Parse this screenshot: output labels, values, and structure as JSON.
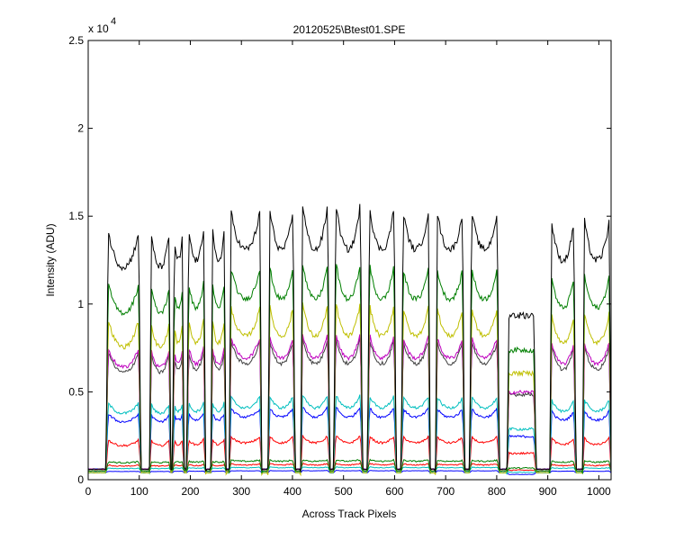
{
  "chart_data": {
    "type": "line",
    "title": "20120525\\Btest01.SPE",
    "xlabel": "Across Track Pixels",
    "ylabel": "Intensity (ADU)",
    "exponent_base": "x 10",
    "exponent_power": "4",
    "xlim": [
      0,
      1024
    ],
    "ylim": [
      0,
      25000
    ],
    "xticks": [
      0,
      100,
      200,
      300,
      400,
      500,
      600,
      700,
      800,
      900,
      1000
    ],
    "yticks": [
      0,
      5000,
      10000,
      15000,
      20000,
      25000
    ],
    "xtick_labels": [
      "0",
      "100",
      "200",
      "300",
      "400",
      "500",
      "600",
      "700",
      "800",
      "900",
      "1000"
    ],
    "ytick_labels": [
      "0",
      "0.5",
      "1",
      "1.5",
      "2",
      "2.5"
    ],
    "grid": false,
    "legend": "none",
    "windows_x": [
      [
        35,
        103
      ],
      [
        120,
        162
      ],
      [
        165,
        188
      ],
      [
        193,
        230
      ],
      [
        240,
        270
      ],
      [
        276,
        340
      ],
      [
        352,
        405
      ],
      [
        416,
        473
      ],
      [
        481,
        537
      ],
      [
        547,
        603
      ],
      [
        613,
        670
      ],
      [
        680,
        737
      ],
      [
        747,
        805
      ],
      [
        820,
        877
      ],
      [
        904,
        955
      ],
      [
        968,
        1024
      ]
    ],
    "series": [
      {
        "color": "#000000",
        "edge": 15600,
        "center": 12500,
        "jitter": 200
      },
      {
        "color": "#007f00",
        "edge": 12300,
        "center": 9800,
        "jitter": 150
      },
      {
        "color": "#bfbf00",
        "edge": 10100,
        "center": 7800,
        "jitter": 130
      },
      {
        "color": "#bf00bf",
        "edge": 8300,
        "center": 6600,
        "jitter": 110
      },
      {
        "color": "#404040",
        "edge": 8100,
        "center": 6300,
        "jitter": 110
      },
      {
        "color": "#00bfbf",
        "edge": 4800,
        "center": 3900,
        "jitter": 80
      },
      {
        "color": "#0000ff",
        "edge": 4100,
        "center": 3400,
        "jitter": 70
      },
      {
        "color": "#ff0000",
        "edge": 2500,
        "center": 2000,
        "jitter": 60
      },
      {
        "color": "#007f00",
        "edge": 1100,
        "center": 1000,
        "jitter": 40
      },
      {
        "color": "#ff0000",
        "edge": 900,
        "center": 800,
        "jitter": 30
      },
      {
        "color": "#00bfbf",
        "edge": 700,
        "center": 650,
        "jitter": 20
      },
      {
        "color": "#0000ff",
        "edge": 500,
        "center": 480,
        "jitter": 10
      }
    ],
    "baseline_ADU": [
      600,
      500,
      400
    ]
  }
}
